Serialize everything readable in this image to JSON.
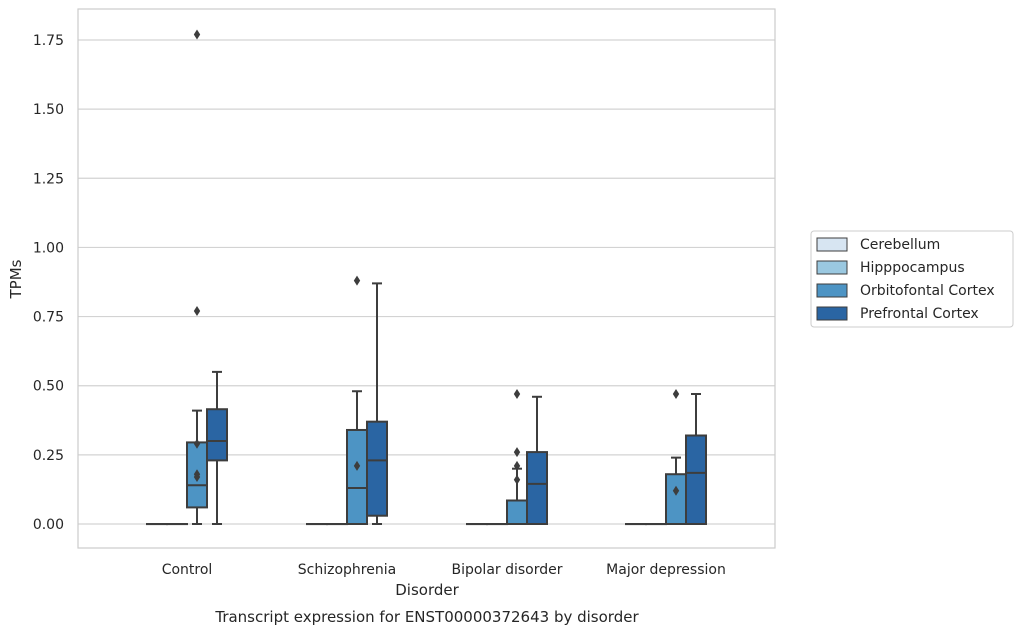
{
  "chart_data": {
    "type": "box",
    "caption": "Transcript expression for ENST00000372643 by disorder",
    "xlabel": "Disorder",
    "ylabel": "TPMs",
    "ylim": [
      -0.07,
      1.86
    ],
    "yticks": [
      "0.00",
      "0.25",
      "0.50",
      "0.75",
      "1.00",
      "1.25",
      "1.50",
      "1.75"
    ],
    "categories": [
      "Control",
      "Schizophrenia",
      "Bipolar disorder",
      "Major depression"
    ],
    "grid": "horizontal",
    "legend_position": "right",
    "series": [
      {
        "name": "Cerebellum",
        "color": "#d7e5f2",
        "boxes": [
          {
            "whislo": 0,
            "q1": 0,
            "med": 0,
            "q3": 0,
            "whishi": 0,
            "fliers": []
          },
          {
            "whislo": 0,
            "q1": 0,
            "med": 0,
            "q3": 0,
            "whishi": 0,
            "fliers": []
          },
          {
            "whislo": 0,
            "q1": 0,
            "med": 0,
            "q3": 0,
            "whishi": 0,
            "fliers": []
          },
          {
            "whislo": 0,
            "q1": 0,
            "med": 0,
            "q3": 0,
            "whishi": 0,
            "fliers": []
          }
        ]
      },
      {
        "name": "Hipppocampus",
        "color": "#9ac8e0",
        "boxes": [
          {
            "whislo": 0,
            "q1": 0,
            "med": 0,
            "q3": 0,
            "whishi": 0,
            "fliers": []
          },
          {
            "whislo": 0,
            "q1": 0,
            "med": 0,
            "q3": 0,
            "whishi": 0,
            "fliers": []
          },
          {
            "whislo": 0,
            "q1": 0,
            "med": 0,
            "q3": 0,
            "whishi": 0,
            "fliers": []
          },
          {
            "whislo": 0,
            "q1": 0,
            "med": 0,
            "q3": 0,
            "whishi": 0,
            "fliers": []
          }
        ]
      },
      {
        "name": "Orbitofontal Cortex",
        "color": "#4d94c4",
        "boxes": [
          {
            "whislo": 0,
            "q1": 0.06,
            "med": 0.14,
            "q3": 0.295,
            "whishi": 0.41,
            "fliers": [
              0.29,
              0.18,
              0.17,
              0.77,
              1.77
            ]
          },
          {
            "whislo": 0,
            "q1": 0,
            "med": 0.13,
            "q3": 0.34,
            "whishi": 0.48,
            "fliers": [
              0.21,
              0.88
            ]
          },
          {
            "whislo": 0,
            "q1": 0,
            "med": 0,
            "q3": 0.085,
            "whishi": 0.2,
            "fliers": [
              0.21,
              0.16,
              0.26,
              0.47
            ]
          },
          {
            "whislo": 0,
            "q1": 0,
            "med": 0,
            "q3": 0.18,
            "whishi": 0.24,
            "fliers": [
              0.12,
              0.47
            ]
          }
        ]
      },
      {
        "name": "Prefrontal Cortex",
        "color": "#2a65a3",
        "boxes": [
          {
            "whislo": 0,
            "q1": 0.23,
            "med": 0.3,
            "q3": 0.415,
            "whishi": 0.55,
            "fliers": []
          },
          {
            "whislo": 0,
            "q1": 0.03,
            "med": 0.23,
            "q3": 0.37,
            "whishi": 0.87,
            "fliers": []
          },
          {
            "whislo": 0,
            "q1": 0,
            "med": 0.145,
            "q3": 0.26,
            "whishi": 0.46,
            "fliers": []
          },
          {
            "whislo": 0,
            "q1": 0,
            "med": 0.185,
            "q3": 0.32,
            "whishi": 0.47,
            "fliers": []
          }
        ]
      }
    ]
  }
}
